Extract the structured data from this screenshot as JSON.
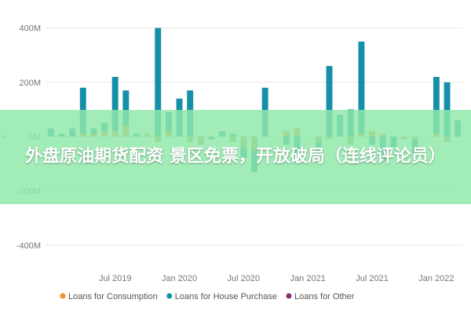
{
  "banner": {
    "headline": "外盘原油期货配资 景区免票，开放破局（连线评论员）"
  },
  "colors": {
    "consumption": "#F28E2B",
    "house": "#168FA8",
    "other": "#8B2F6E",
    "negative": "#B5A24B",
    "grid": "#E6E6E6"
  },
  "chart_data": {
    "type": "bar",
    "stacked": true,
    "title": "",
    "xlabel": "",
    "ylabel": "£",
    "ylim": [
      -480,
      480
    ],
    "yticks": [
      -400,
      -200,
      0,
      200,
      400
    ],
    "ytick_labels": [
      "-400M",
      "-200M",
      "0M",
      "200M",
      "400M"
    ],
    "x_tick_labels": [
      "Jul 2019",
      "Jan 2020",
      "Jul 2020",
      "Jan 2021",
      "Jul 2021",
      "Jan 2022"
    ],
    "x_tick_index": [
      6,
      12,
      18,
      24,
      30,
      36
    ],
    "grid": true,
    "legend_position": "bottom",
    "categories": [
      "2019-01",
      "2019-02",
      "2019-03",
      "2019-04",
      "2019-05",
      "2019-06",
      "2019-07",
      "2019-08",
      "2019-09",
      "2019-10",
      "2019-11",
      "2019-12",
      "2020-01",
      "2020-02",
      "2020-03",
      "2020-04",
      "2020-05",
      "2020-06",
      "2020-07",
      "2020-08",
      "2020-09",
      "2020-10",
      "2020-11",
      "2020-12",
      "2021-01",
      "2021-02",
      "2021-03",
      "2021-04",
      "2021-05",
      "2021-06",
      "2021-07",
      "2021-08",
      "2021-09",
      "2021-10",
      "2021-11",
      "2021-12",
      "2022-01",
      "2022-02",
      "2022-03"
    ],
    "series": [
      {
        "name": "Loans for Consumption",
        "values": [
          0,
          0,
          0,
          10,
          10,
          20,
          20,
          40,
          0,
          10,
          -20,
          20,
          0,
          -20,
          -30,
          0,
          0,
          -20,
          -40,
          -50,
          0,
          0,
          20,
          30,
          0,
          -20,
          -10,
          0,
          -30,
          10,
          20,
          10,
          0,
          -10,
          -10,
          0,
          10,
          -20,
          0
        ]
      },
      {
        "name": "Loans for House Purchase",
        "values": [
          30,
          10,
          30,
          170,
          20,
          30,
          200,
          130,
          10,
          0,
          400,
          70,
          140,
          170,
          0,
          -10,
          20,
          10,
          -40,
          -80,
          180,
          0,
          -30,
          -70,
          0,
          -40,
          260,
          80,
          100,
          340,
          -30,
          -90,
          -40,
          0,
          -50,
          0,
          210,
          200,
          60
        ]
      },
      {
        "name": "Loans for Other",
        "values": [
          0,
          0,
          0,
          0,
          0,
          0,
          0,
          0,
          0,
          0,
          0,
          0,
          0,
          0,
          0,
          0,
          0,
          0,
          0,
          0,
          0,
          0,
          0,
          0,
          0,
          0,
          0,
          0,
          0,
          0,
          0,
          0,
          0,
          0,
          0,
          0,
          0,
          0,
          0
        ]
      }
    ]
  }
}
